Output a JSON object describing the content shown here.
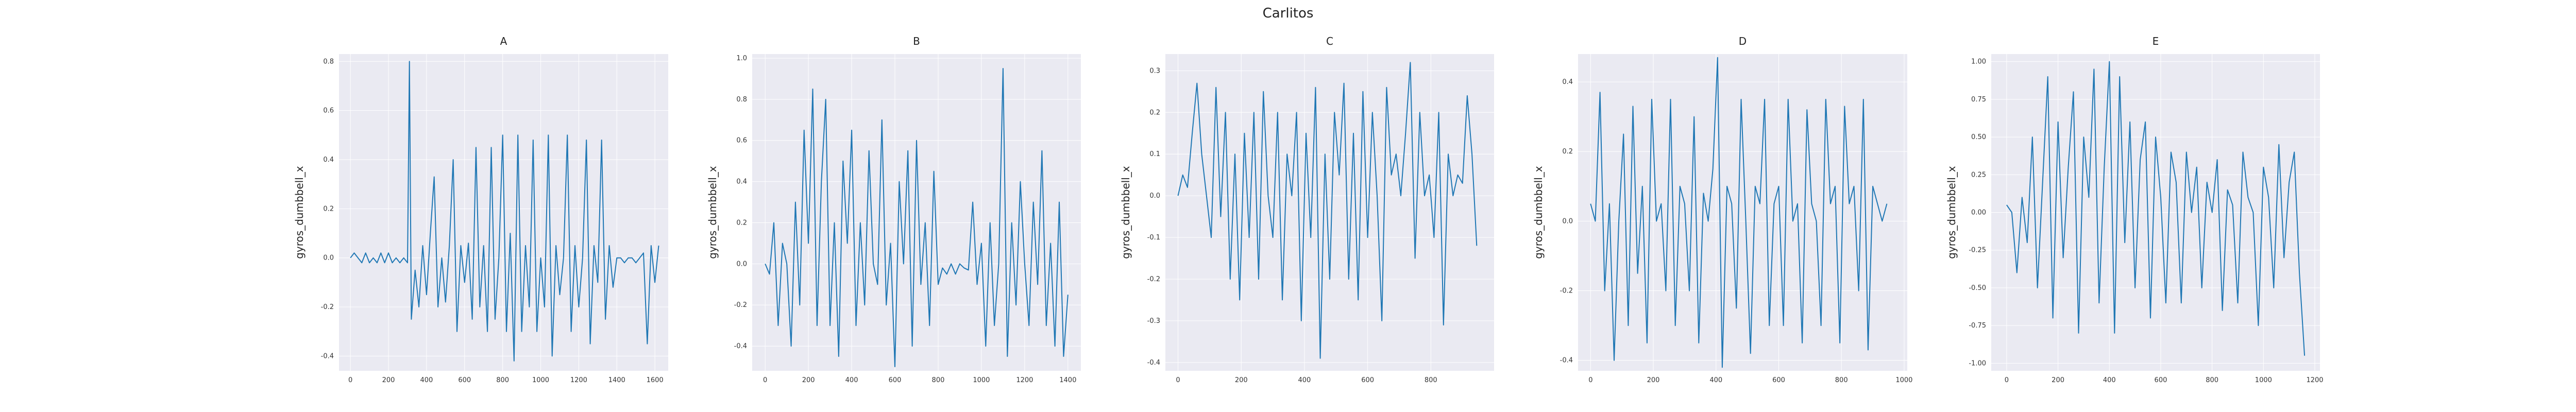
{
  "figure": {
    "title": "Carlitos"
  },
  "colors": {
    "line": "#1f77b4",
    "panel_bg": "#eaeaf2",
    "grid": "#ffffff"
  },
  "chart_data": [
    {
      "type": "line",
      "title": "A",
      "xlabel": "",
      "ylabel": "gyros_dumbbell_x",
      "grid": true,
      "xlim": [
        -60,
        1670
      ],
      "ylim": [
        -0.46,
        0.83
      ],
      "xticks": [
        0,
        200,
        400,
        600,
        800,
        1000,
        1200,
        1400,
        1600
      ],
      "yticks": [
        -0.4,
        -0.2,
        0.0,
        0.2,
        0.4,
        0.6,
        0.8
      ],
      "series": [
        {
          "x": [
            0,
            20,
            40,
            60,
            80,
            100,
            120,
            140,
            160,
            180,
            200,
            220,
            240,
            260,
            280,
            300,
            310,
            320,
            340,
            360,
            380,
            400,
            420,
            440,
            460,
            480,
            500,
            520,
            540,
            560,
            580,
            600,
            620,
            640,
            660,
            680,
            700,
            720,
            740,
            760,
            780,
            800,
            820,
            840,
            860,
            880,
            900,
            920,
            940,
            960,
            980,
            1000,
            1020,
            1040,
            1060,
            1080,
            1100,
            1120,
            1140,
            1160,
            1180,
            1200,
            1220,
            1240,
            1260,
            1280,
            1300,
            1320,
            1340,
            1360,
            1380,
            1400,
            1420,
            1440,
            1460,
            1480,
            1500,
            1520,
            1540,
            1560,
            1580,
            1600,
            1620
          ],
          "y": [
            0.0,
            0.02,
            0.0,
            -0.02,
            0.02,
            -0.02,
            0.0,
            -0.02,
            0.02,
            -0.02,
            0.02,
            -0.02,
            0.0,
            -0.02,
            0.0,
            -0.02,
            0.8,
            -0.25,
            -0.05,
            -0.2,
            0.05,
            -0.15,
            0.1,
            0.33,
            -0.2,
            0.0,
            -0.18,
            0.05,
            0.4,
            -0.3,
            0.05,
            -0.1,
            0.06,
            -0.25,
            0.45,
            -0.2,
            0.05,
            -0.3,
            0.45,
            -0.25,
            0.0,
            0.5,
            -0.3,
            0.1,
            -0.42,
            0.5,
            -0.3,
            0.05,
            -0.2,
            0.48,
            -0.3,
            0.0,
            -0.2,
            0.5,
            -0.4,
            0.05,
            -0.15,
            0.0,
            0.5,
            -0.3,
            0.05,
            -0.2,
            0.0,
            0.48,
            -0.35,
            0.05,
            -0.1,
            0.48,
            -0.25,
            0.05,
            -0.12,
            0.0,
            0.0,
            -0.02,
            0.0,
            0.0,
            -0.02,
            0.0,
            0.02,
            -0.35,
            0.05,
            -0.1,
            0.05
          ]
        }
      ]
    },
    {
      "type": "line",
      "title": "B",
      "xlabel": "",
      "ylabel": "gyros_dumbbell_x",
      "grid": true,
      "xlim": [
        -60,
        1460
      ],
      "ylim": [
        -0.52,
        1.02
      ],
      "xticks": [
        0,
        200,
        400,
        600,
        800,
        1000,
        1200,
        1400
      ],
      "yticks": [
        -0.4,
        -0.2,
        0.0,
        0.2,
        0.4,
        0.6,
        0.8,
        1.0
      ],
      "series": [
        {
          "x": [
            0,
            20,
            40,
            60,
            80,
            100,
            120,
            140,
            160,
            180,
            200,
            220,
            240,
            260,
            280,
            300,
            320,
            340,
            360,
            380,
            400,
            420,
            440,
            460,
            480,
            500,
            520,
            540,
            560,
            580,
            600,
            620,
            640,
            660,
            680,
            700,
            720,
            740,
            760,
            780,
            800,
            820,
            840,
            860,
            880,
            900,
            920,
            940,
            960,
            980,
            1000,
            1020,
            1040,
            1060,
            1080,
            1100,
            1120,
            1140,
            1160,
            1180,
            1200,
            1220,
            1240,
            1260,
            1280,
            1300,
            1320,
            1340,
            1360,
            1380,
            1400
          ],
          "y": [
            0.0,
            -0.05,
            0.2,
            -0.3,
            0.1,
            0.0,
            -0.4,
            0.3,
            -0.2,
            0.65,
            0.1,
            0.85,
            -0.3,
            0.4,
            0.8,
            -0.3,
            0.2,
            -0.45,
            0.5,
            0.1,
            0.65,
            -0.3,
            0.2,
            -0.2,
            0.55,
            0.0,
            -0.1,
            0.7,
            -0.2,
            0.1,
            -0.5,
            0.4,
            0.0,
            0.55,
            -0.4,
            0.6,
            -0.1,
            0.2,
            -0.3,
            0.45,
            -0.1,
            -0.02,
            -0.05,
            0.0,
            -0.05,
            0.0,
            -0.02,
            -0.03,
            0.3,
            -0.1,
            0.1,
            -0.4,
            0.2,
            -0.3,
            0.0,
            0.95,
            -0.45,
            0.2,
            -0.2,
            0.4,
            0.0,
            -0.3,
            0.3,
            -0.1,
            0.55,
            -0.3,
            0.1,
            -0.4,
            0.3,
            -0.45,
            -0.15
          ]
        }
      ]
    },
    {
      "type": "line",
      "title": "C",
      "xlabel": "",
      "ylabel": "gyros_dumbbell_x",
      "grid": true,
      "xlim": [
        -40,
        1000
      ],
      "ylim": [
        -0.42,
        0.34
      ],
      "xticks": [
        0,
        200,
        400,
        600,
        800
      ],
      "yticks": [
        -0.4,
        -0.3,
        -0.2,
        -0.1,
        0.0,
        0.1,
        0.2,
        0.3
      ],
      "series": [
        {
          "x": [
            0,
            15,
            30,
            45,
            60,
            75,
            90,
            105,
            120,
            135,
            150,
            165,
            180,
            195,
            210,
            225,
            240,
            255,
            270,
            285,
            300,
            315,
            330,
            345,
            360,
            375,
            390,
            405,
            420,
            435,
            450,
            465,
            480,
            495,
            510,
            525,
            540,
            555,
            570,
            585,
            600,
            615,
            630,
            645,
            660,
            675,
            690,
            705,
            720,
            735,
            750,
            765,
            780,
            795,
            810,
            825,
            840,
            855,
            870,
            885,
            900,
            915,
            930,
            945
          ],
          "y": [
            0.0,
            0.05,
            0.02,
            0.15,
            0.27,
            0.1,
            0.0,
            -0.1,
            0.26,
            -0.05,
            0.2,
            -0.2,
            0.1,
            -0.25,
            0.15,
            -0.1,
            0.2,
            -0.2,
            0.25,
            0.0,
            -0.1,
            0.2,
            -0.25,
            0.1,
            0.0,
            0.2,
            -0.3,
            0.15,
            -0.1,
            0.26,
            -0.39,
            0.1,
            -0.2,
            0.2,
            0.05,
            0.27,
            -0.2,
            0.15,
            -0.25,
            0.25,
            -0.1,
            0.2,
            0.0,
            -0.3,
            0.26,
            0.05,
            0.1,
            0.0,
            0.15,
            0.32,
            -0.15,
            0.2,
            0.0,
            0.05,
            -0.1,
            0.2,
            -0.31,
            0.1,
            0.0,
            0.05,
            0.03,
            0.24,
            0.1,
            -0.12
          ]
        }
      ]
    },
    {
      "type": "line",
      "title": "D",
      "xlabel": "",
      "ylabel": "gyros_dumbbell_x",
      "grid": true,
      "xlim": [
        -40,
        1010
      ],
      "ylim": [
        -0.43,
        0.48
      ],
      "xticks": [
        0,
        200,
        400,
        600,
        800,
        1000
      ],
      "yticks": [
        -0.4,
        -0.2,
        0.0,
        0.2,
        0.4
      ],
      "series": [
        {
          "x": [
            0,
            15,
            30,
            45,
            60,
            75,
            90,
            105,
            120,
            135,
            150,
            165,
            180,
            195,
            210,
            225,
            240,
            255,
            270,
            285,
            300,
            315,
            330,
            345,
            360,
            375,
            390,
            405,
            420,
            435,
            450,
            465,
            480,
            495,
            510,
            525,
            540,
            555,
            570,
            585,
            600,
            615,
            630,
            645,
            660,
            675,
            690,
            705,
            720,
            735,
            750,
            765,
            780,
            795,
            810,
            825,
            840,
            855,
            870,
            885,
            900,
            915,
            930,
            945
          ],
          "y": [
            0.05,
            0.0,
            0.37,
            -0.2,
            0.05,
            -0.4,
            0.0,
            0.25,
            -0.3,
            0.33,
            -0.15,
            0.1,
            -0.35,
            0.35,
            0.0,
            0.05,
            -0.2,
            0.35,
            -0.3,
            0.1,
            0.05,
            -0.2,
            0.3,
            -0.35,
            0.08,
            0.0,
            0.15,
            0.47,
            -0.42,
            0.1,
            0.05,
            -0.25,
            0.35,
            0.0,
            -0.38,
            0.1,
            0.05,
            0.35,
            -0.3,
            0.05,
            0.1,
            -0.3,
            0.35,
            0.0,
            0.05,
            -0.35,
            0.32,
            0.05,
            0.0,
            -0.3,
            0.35,
            0.05,
            0.1,
            -0.35,
            0.33,
            0.05,
            0.1,
            -0.2,
            0.35,
            -0.37,
            0.1,
            0.05,
            0.0,
            0.05
          ]
        }
      ]
    },
    {
      "type": "line",
      "title": "E",
      "xlabel": "",
      "ylabel": "gyros_dumbbell_x",
      "grid": true,
      "xlim": [
        -60,
        1220
      ],
      "ylim": [
        -1.05,
        1.05
      ],
      "xticks": [
        0,
        200,
        400,
        600,
        800,
        1000,
        1200
      ],
      "yticks": [
        -1.0,
        -0.75,
        -0.5,
        -0.25,
        0.0,
        0.25,
        0.5,
        0.75,
        1.0
      ],
      "series": [
        {
          "x": [
            0,
            20,
            40,
            60,
            80,
            100,
            120,
            140,
            160,
            180,
            200,
            220,
            240,
            260,
            280,
            300,
            320,
            340,
            360,
            380,
            400,
            420,
            440,
            460,
            480,
            500,
            520,
            540,
            560,
            580,
            600,
            620,
            640,
            660,
            680,
            700,
            720,
            740,
            760,
            780,
            800,
            820,
            840,
            860,
            880,
            900,
            920,
            940,
            960,
            980,
            1000,
            1020,
            1040,
            1060,
            1080,
            1100,
            1120,
            1140,
            1160
          ],
          "y": [
            0.05,
            0.0,
            -0.4,
            0.1,
            -0.2,
            0.5,
            -0.5,
            0.2,
            0.9,
            -0.7,
            0.6,
            -0.3,
            0.3,
            0.8,
            -0.8,
            0.5,
            0.1,
            0.95,
            -0.6,
            0.3,
            1.0,
            -0.8,
            0.9,
            -0.2,
            0.6,
            -0.5,
            0.35,
            0.6,
            -0.7,
            0.5,
            0.1,
            -0.6,
            0.4,
            0.2,
            -0.6,
            0.4,
            0.0,
            0.3,
            -0.5,
            0.2,
            0.0,
            0.35,
            -0.65,
            0.15,
            0.05,
            -0.6,
            0.4,
            0.1,
            0.0,
            -0.75,
            0.3,
            0.1,
            -0.5,
            0.45,
            -0.3,
            0.2,
            0.4,
            -0.4,
            -0.95
          ]
        }
      ]
    }
  ]
}
